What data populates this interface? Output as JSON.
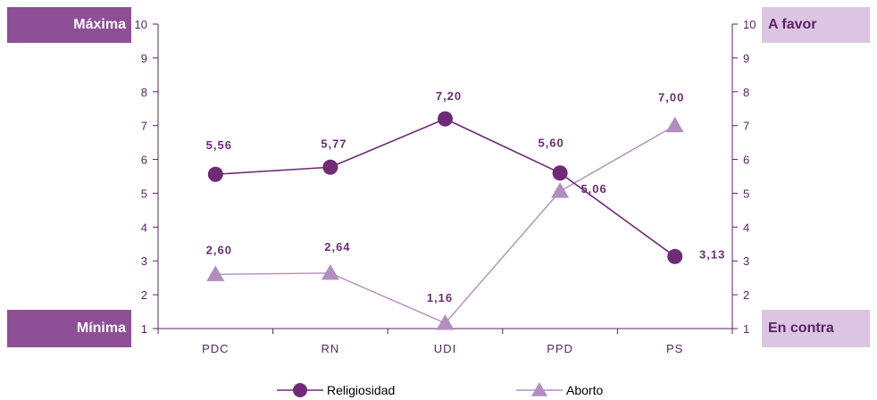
{
  "labels": {
    "left_top": "Máxima",
    "left_bottom": "Mínima",
    "right_top": "A favor",
    "right_bottom": "En contra"
  },
  "chart_data": {
    "type": "line",
    "title": "",
    "xlabel": "",
    "ylabel": "",
    "categories": [
      "PDC",
      "RN",
      "UDI",
      "PPD",
      "PS"
    ],
    "ylim": [
      1,
      10
    ],
    "y_ticks": [
      1,
      2,
      3,
      4,
      5,
      6,
      7,
      8,
      9,
      10
    ],
    "secondary_ylim": [
      1,
      10
    ],
    "grid": false,
    "legend_position": "bottom",
    "series": [
      {
        "name": "Religiosidad",
        "values": [
          5.56,
          5.77,
          7.2,
          5.6,
          3.13
        ],
        "value_labels": [
          "5,56",
          "5,77",
          "7,20",
          "5,60",
          "3,13"
        ],
        "color": "#6f2a78",
        "marker": "circle"
      },
      {
        "name": "Aborto",
        "values": [
          2.6,
          2.64,
          1.16,
          5.06,
          7.0
        ],
        "value_labels": [
          "2,60",
          "2,64",
          "1,16",
          "5,06",
          "7,00"
        ],
        "color": "#b28dc0",
        "marker": "triangle"
      }
    ]
  }
}
